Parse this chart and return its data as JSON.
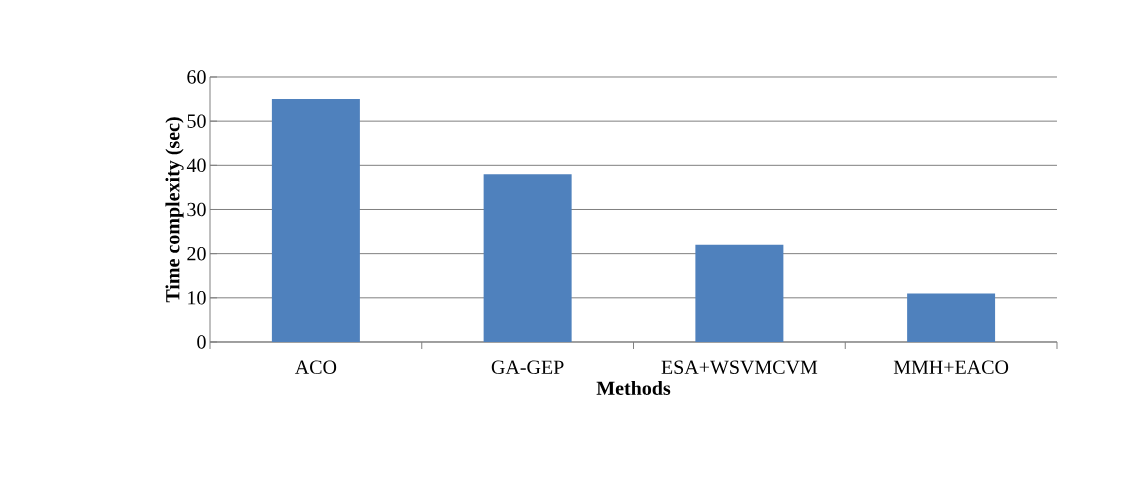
{
  "chart_data": {
    "type": "bar",
    "xlabel": "Methods",
    "ylabel": "Time complexity (sec)",
    "categories": [
      "ACO",
      "GA-GEP",
      "ESA+WSVMCVM",
      "MMH+EACO"
    ],
    "values": [
      55,
      38,
      22,
      11
    ],
    "color": "#4f81bd",
    "ylim": [
      0,
      60
    ],
    "yticks": [
      0,
      10,
      20,
      30,
      40,
      50,
      60
    ],
    "grid": "y"
  }
}
